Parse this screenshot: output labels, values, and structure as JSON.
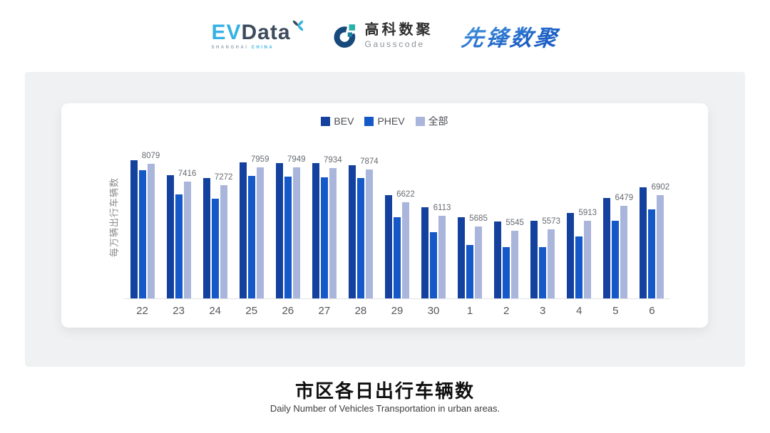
{
  "header": {
    "evdata": {
      "ev": "EV",
      "data": "Data",
      "sub_left": "SHANGHAI",
      "sub_right": "CHINA"
    },
    "gausscode": {
      "cn": "高科数聚",
      "en": "Gausscode"
    },
    "xianfeng": {
      "text": "先锋数聚"
    }
  },
  "chart_data": {
    "type": "bar",
    "title": "市区各日出行车辆数",
    "subtitle": "Daily Number of Vehicles Transportation in urban areas.",
    "ylabel": "每万辆出行车辆数",
    "xlabel": "",
    "categories": [
      "22",
      "23",
      "24",
      "25",
      "26",
      "27",
      "28",
      "29",
      "30",
      "1",
      "2",
      "3",
      "4",
      "5",
      "6"
    ],
    "series": [
      {
        "name": "BEV",
        "color": "#14419E",
        "values": [
          8225,
          7640,
          7550,
          8140,
          8115,
          8115,
          8035,
          6900,
          6420,
          6060,
          5875,
          5920,
          6210,
          6785,
          7200
        ],
        "values_estimated_from_bar_heights": true
      },
      {
        "name": "PHEV",
        "color": "#1558C8",
        "values": [
          7845,
          6920,
          6755,
          7625,
          7600,
          7570,
          7535,
          6060,
          5490,
          5000,
          4910,
          4900,
          5315,
          5905,
          6355
        ],
        "values_estimated_from_bar_heights": true
      },
      {
        "name": "全部",
        "color": "#AAB5DC",
        "values": [
          8079,
          7416,
          7272,
          7959,
          7949,
          7934,
          7874,
          6622,
          6113,
          5685,
          5545,
          5573,
          5913,
          6479,
          6902
        ],
        "value_labels_shown": true
      }
    ],
    "legend": [
      "BEV",
      "PHEV",
      "全部"
    ],
    "legend_position": "top",
    "grid": false,
    "axis_min": 2950,
    "value_label_color": "#666A70"
  },
  "footer": {
    "title": "市区各日出行车辆数",
    "subtitle": "Daily Number of Vehicles Transportation in urban areas."
  }
}
